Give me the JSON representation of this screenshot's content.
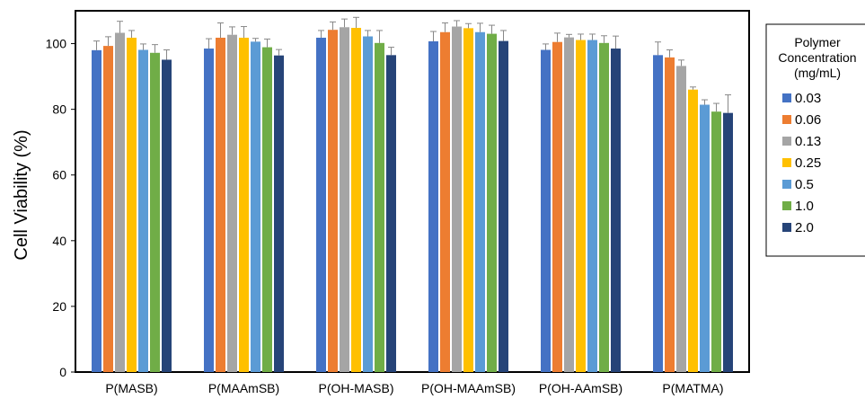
{
  "chart_data": {
    "type": "bar",
    "ylabel": "Cell Viability (%)",
    "ylim": [
      0,
      110
    ],
    "yticks": [
      0,
      20,
      40,
      60,
      80,
      100
    ],
    "grid": false,
    "legend_placement": "right",
    "legend_title": [
      "Polymer",
      "Concentration",
      "(mg/mL)"
    ],
    "categories": [
      "P(MASB)",
      "P(MAAmSB)",
      "P(OH-MASB)",
      "P(OH-MAAmSB)",
      "P(OH-AAmSB)",
      "P(MATMA)"
    ],
    "series": [
      {
        "name": "0.03",
        "color": "#4472C4",
        "values": [
          98,
          98.5,
          101.8,
          100.7,
          98.1,
          96.5
        ],
        "errors": [
          2.8,
          3.0,
          2.2,
          3.0,
          1.8,
          4.0
        ]
      },
      {
        "name": "0.06",
        "color": "#ED7D31",
        "values": [
          99.3,
          101.8,
          104.2,
          103.5,
          100.5,
          95.8
        ],
        "errors": [
          2.8,
          4.5,
          2.4,
          2.8,
          2.7,
          2.3
        ]
      },
      {
        "name": "0.13",
        "color": "#A5A5A5",
        "values": [
          103.3,
          102.7,
          105,
          105.2,
          101.9,
          93.2
        ],
        "errors": [
          3.5,
          2.4,
          2.5,
          1.8,
          0.9,
          1.8
        ]
      },
      {
        "name": "0.25",
        "color": "#FFC000",
        "values": [
          101.8,
          101.8,
          104.8,
          104.7,
          101.1,
          86.0
        ],
        "errors": [
          2.2,
          3.4,
          3.2,
          1.4,
          1.8,
          0.8
        ]
      },
      {
        "name": "0.5",
        "color": "#5B9BD5",
        "values": [
          98.1,
          100.6,
          102.2,
          103.5,
          101.1,
          81.4
        ],
        "errors": [
          1.8,
          1.0,
          1.8,
          2.7,
          1.8,
          1.5
        ]
      },
      {
        "name": "1.0",
        "color": "#70AD47",
        "values": [
          97.2,
          98.9,
          100.2,
          103,
          100.2,
          79.3
        ],
        "errors": [
          2.5,
          2.5,
          3.8,
          2.6,
          2.2,
          2.5
        ]
      },
      {
        "name": "2.0",
        "color": "#264478",
        "values": [
          95.1,
          96.4,
          96.5,
          100.8,
          98.5,
          78.9
        ],
        "errors": [
          3.0,
          1.8,
          2.4,
          3.2,
          3.8,
          5.5
        ]
      }
    ]
  }
}
